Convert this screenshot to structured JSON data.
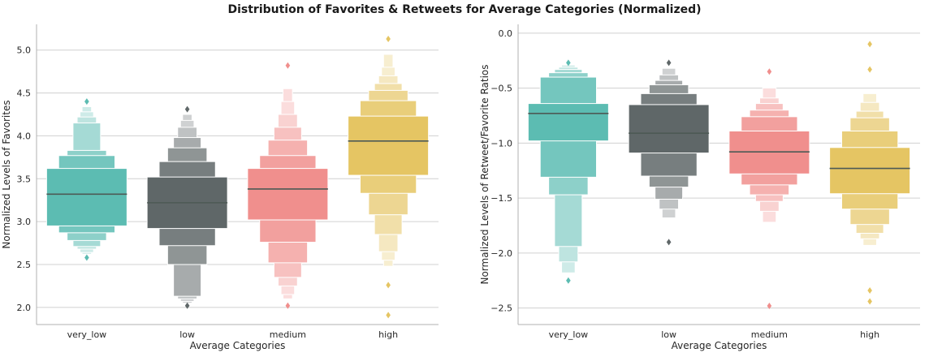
{
  "figure": {
    "title": "Distribution of Favorites & Retweets for Average Categories (Normalized)"
  },
  "colors": {
    "very_low": "#5cbcb2",
    "low": "#5f6768",
    "medium": "#f08f8d",
    "high": "#e5c563",
    "median_line": "#4d5a55",
    "grid": "#d0d0d0",
    "spine": "#b0b0b0"
  },
  "chart_data": [
    {
      "type": "boxen",
      "xlabel": "Average Categories",
      "ylabel": "Normalized Levels of Favorites",
      "ylim": [
        1.8,
        5.3
      ],
      "yticks": [
        2.0,
        2.5,
        3.0,
        3.5,
        4.0,
        4.5,
        5.0
      ],
      "ytick_labels": [
        "2.0",
        "2.5",
        "3.0",
        "3.5",
        "4.0",
        "4.5",
        "5.0"
      ],
      "grid": true,
      "categories": [
        "very_low",
        "low",
        "medium",
        "high"
      ],
      "series": [
        {
          "category": "very_low",
          "median": 3.32,
          "boxes": [
            [
              2.95,
              3.62
            ],
            [
              2.87,
              3.77
            ],
            [
              2.78,
              3.83
            ],
            [
              2.71,
              4.15
            ],
            [
              2.68,
              4.22
            ],
            [
              2.64,
              4.28
            ],
            [
              2.62,
              4.34
            ]
          ],
          "outliers": [
            2.58,
            4.4
          ]
        },
        {
          "category": "low",
          "median": 3.22,
          "boxes": [
            [
              2.92,
              3.52
            ],
            [
              2.72,
              3.7
            ],
            [
              2.5,
              3.86
            ],
            [
              2.13,
              3.98
            ],
            [
              2.1,
              4.1
            ],
            [
              2.07,
              4.18
            ],
            [
              2.05,
              4.25
            ]
          ],
          "outliers": [
            2.02,
            4.31
          ]
        },
        {
          "category": "medium",
          "median": 3.38,
          "boxes": [
            [
              3.02,
              3.62
            ],
            [
              2.76,
              3.77
            ],
            [
              2.52,
              3.95
            ],
            [
              2.35,
              4.1
            ],
            [
              2.25,
              4.25
            ],
            [
              2.15,
              4.4
            ],
            [
              2.1,
              4.55
            ]
          ],
          "outliers": [
            2.02,
            4.82
          ]
        },
        {
          "category": "high",
          "median": 3.94,
          "boxes": [
            [
              3.54,
              4.23
            ],
            [
              3.33,
              4.41
            ],
            [
              3.08,
              4.53
            ],
            [
              2.85,
              4.61
            ],
            [
              2.65,
              4.7
            ],
            [
              2.55,
              4.8
            ],
            [
              2.48,
              4.95
            ]
          ],
          "outliers": [
            1.91,
            2.26,
            5.13
          ]
        }
      ]
    },
    {
      "type": "boxen",
      "xlabel": "Average Categories",
      "ylabel": "Normalized Levels of Retweet/Favorite Ratios",
      "ylim": [
        -2.65,
        0.08
      ],
      "yticks": [
        -2.5,
        -2.0,
        -1.5,
        -1.0,
        -0.5,
        0.0
      ],
      "ytick_labels": [
        "−2.5",
        "−2.0",
        "−1.5",
        "−1.0",
        "−0.5",
        "0.0"
      ],
      "grid": true,
      "categories": [
        "very_low",
        "low",
        "medium",
        "high"
      ],
      "series": [
        {
          "category": "very_low",
          "median": -0.73,
          "boxes": [
            [
              -0.98,
              -0.64
            ],
            [
              -1.31,
              -0.4
            ],
            [
              -1.47,
              -0.36
            ],
            [
              -1.94,
              -0.33
            ],
            [
              -2.08,
              -0.31
            ],
            [
              -2.18,
              -0.29
            ]
          ],
          "outliers": [
            -2.25,
            -0.27
          ]
        },
        {
          "category": "low",
          "median": -0.91,
          "boxes": [
            [
              -1.09,
              -0.65
            ],
            [
              -1.3,
              -0.55
            ],
            [
              -1.4,
              -0.47
            ],
            [
              -1.51,
              -0.43
            ],
            [
              -1.6,
              -0.38
            ],
            [
              -1.68,
              -0.32
            ]
          ],
          "outliers": [
            -1.9,
            -0.27
          ]
        },
        {
          "category": "medium",
          "median": -1.08,
          "boxes": [
            [
              -1.28,
              -0.89
            ],
            [
              -1.38,
              -0.76
            ],
            [
              -1.47,
              -0.7
            ],
            [
              -1.53,
              -0.64
            ],
            [
              -1.62,
              -0.59
            ],
            [
              -1.72,
              -0.5
            ]
          ],
          "outliers": [
            -2.48,
            -0.35
          ]
        },
        {
          "category": "high",
          "median": -1.23,
          "boxes": [
            [
              -1.46,
              -1.04
            ],
            [
              -1.6,
              -0.89
            ],
            [
              -1.74,
              -0.77
            ],
            [
              -1.82,
              -0.71
            ],
            [
              -1.87,
              -0.63
            ],
            [
              -1.93,
              -0.55
            ]
          ],
          "outliers": [
            -2.44,
            -2.34,
            -0.33,
            -0.1
          ]
        }
      ]
    }
  ]
}
